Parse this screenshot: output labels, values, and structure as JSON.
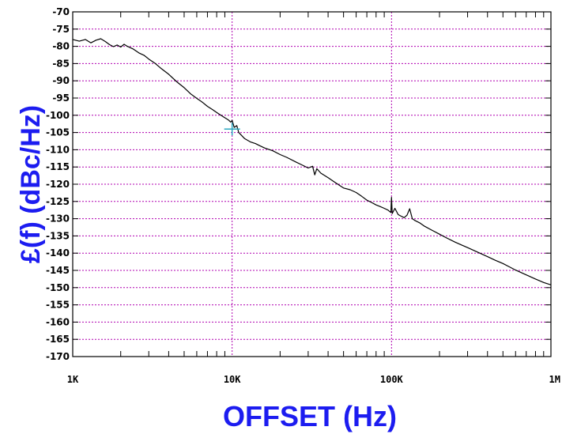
{
  "chart_data": {
    "type": "line",
    "xlabel": "OFFSET (Hz)",
    "ylabel": "£(f) (dBc/Hz)",
    "x_scale": "log",
    "xlim": [
      1000,
      1000000
    ],
    "ylim": [
      -170,
      -70
    ],
    "x_ticks": [
      {
        "value": 1000,
        "label": "1K"
      },
      {
        "value": 10000,
        "label": "10K"
      },
      {
        "value": 100000,
        "label": "100K"
      },
      {
        "value": 1000000,
        "label": "1M"
      }
    ],
    "y_ticks": [
      {
        "value": -70,
        "label": "-70"
      },
      {
        "value": -75,
        "label": "-75"
      },
      {
        "value": -80,
        "label": "-80"
      },
      {
        "value": -85,
        "label": "-85"
      },
      {
        "value": -90,
        "label": "-90"
      },
      {
        "value": -95,
        "label": "-95"
      },
      {
        "value": -100,
        "label": "-100"
      },
      {
        "value": -105,
        "label": "-105"
      },
      {
        "value": -110,
        "label": "-110"
      },
      {
        "value": -115,
        "label": "-115"
      },
      {
        "value": -120,
        "label": "-120"
      },
      {
        "value": -125,
        "label": "-125"
      },
      {
        "value": -130,
        "label": "-130"
      },
      {
        "value": -135,
        "label": "-135"
      },
      {
        "value": -140,
        "label": "-140"
      },
      {
        "value": -145,
        "label": "-145"
      },
      {
        "value": -150,
        "label": "-150"
      },
      {
        "value": -155,
        "label": "-155"
      },
      {
        "value": -160,
        "label": "-160"
      },
      {
        "value": -165,
        "label": "-165"
      },
      {
        "value": -170,
        "label": "-170"
      }
    ],
    "grid": true,
    "series": [
      {
        "color": "#000000",
        "points": [
          [
            1000,
            -78
          ],
          [
            1100,
            -78.5
          ],
          [
            1200,
            -78
          ],
          [
            1300,
            -79
          ],
          [
            1400,
            -78.2
          ],
          [
            1500,
            -77.8
          ],
          [
            1600,
            -78.6
          ],
          [
            1700,
            -79.5
          ],
          [
            1800,
            -80.1
          ],
          [
            1900,
            -79.6
          ],
          [
            2000,
            -80.2
          ],
          [
            2100,
            -79.4
          ],
          [
            2200,
            -80.0
          ],
          [
            2400,
            -80.8
          ],
          [
            2600,
            -81.9
          ],
          [
            2800,
            -82.6
          ],
          [
            3000,
            -83.7
          ],
          [
            3300,
            -85.0
          ],
          [
            3600,
            -86.5
          ],
          [
            4000,
            -88.1
          ],
          [
            4500,
            -90.3
          ],
          [
            5000,
            -92.0
          ],
          [
            5500,
            -93.8
          ],
          [
            6000,
            -95.1
          ],
          [
            6500,
            -96.2
          ],
          [
            7000,
            -97.4
          ],
          [
            7500,
            -98.3
          ],
          [
            8000,
            -99.2
          ],
          [
            8500,
            -100.0
          ],
          [
            9000,
            -100.7
          ],
          [
            9500,
            -101.4
          ],
          [
            9800,
            -102.0
          ],
          [
            10000,
            -101.5
          ],
          [
            10300,
            -103.5
          ],
          [
            10700,
            -103.0
          ],
          [
            11000,
            -105.0
          ],
          [
            12000,
            -106.8
          ],
          [
            13000,
            -107.7
          ],
          [
            14000,
            -108.2
          ],
          [
            15000,
            -108.9
          ],
          [
            16000,
            -109.5
          ],
          [
            18000,
            -110.3
          ],
          [
            20000,
            -111.4
          ],
          [
            22000,
            -112.2
          ],
          [
            25000,
            -113.5
          ],
          [
            28000,
            -114.6
          ],
          [
            30000,
            -115.3
          ],
          [
            32000,
            -114.8
          ],
          [
            33000,
            -117.3
          ],
          [
            34000,
            -115.5
          ],
          [
            36000,
            -116.8
          ],
          [
            40000,
            -118.1
          ],
          [
            45000,
            -119.7
          ],
          [
            50000,
            -121.1
          ],
          [
            55000,
            -121.6
          ],
          [
            60000,
            -122.4
          ],
          [
            65000,
            -123.5
          ],
          [
            70000,
            -124.6
          ],
          [
            75000,
            -125.3
          ],
          [
            80000,
            -126.0
          ],
          [
            85000,
            -126.5
          ],
          [
            90000,
            -127.0
          ],
          [
            95000,
            -127.5
          ],
          [
            99000,
            -128.2
          ],
          [
            100000,
            -123.8
          ],
          [
            101000,
            -128.5
          ],
          [
            105000,
            -127.0
          ],
          [
            110000,
            -128.8
          ],
          [
            115000,
            -129.3
          ],
          [
            120000,
            -129.7
          ],
          [
            125000,
            -129.0
          ],
          [
            130000,
            -127.1
          ],
          [
            135000,
            -130.0
          ],
          [
            140000,
            -130.5
          ],
          [
            150000,
            -131.2
          ],
          [
            160000,
            -132.1
          ],
          [
            180000,
            -133.4
          ],
          [
            200000,
            -134.5
          ],
          [
            220000,
            -135.5
          ],
          [
            250000,
            -136.8
          ],
          [
            280000,
            -137.8
          ],
          [
            300000,
            -138.4
          ],
          [
            350000,
            -139.8
          ],
          [
            400000,
            -141.0
          ],
          [
            450000,
            -142.1
          ],
          [
            500000,
            -143.0
          ],
          [
            550000,
            -144.0
          ],
          [
            600000,
            -144.9
          ],
          [
            700000,
            -146.3
          ],
          [
            800000,
            -147.5
          ],
          [
            900000,
            -148.5
          ],
          [
            1000000,
            -149.2
          ]
        ]
      }
    ],
    "marker": {
      "x": 10000,
      "y": -104,
      "color": "#2aa6c0"
    },
    "grid_color": "#b000b0"
  }
}
